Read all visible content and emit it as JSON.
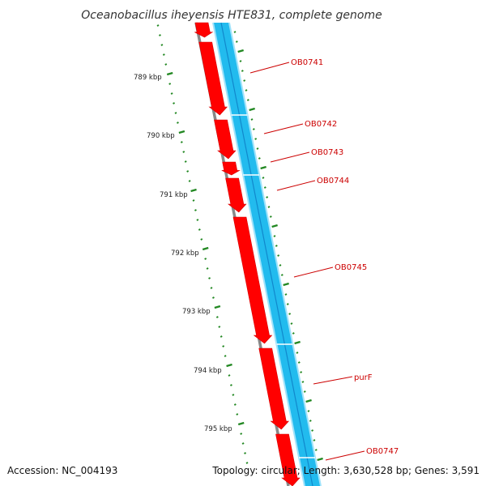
{
  "header": {
    "title": "Oceanobacillus iheyensis HTE831, complete genome"
  },
  "scale_labels": [
    "789 kbp",
    "790 kbp",
    "791 kbp",
    "792 kbp",
    "793 kbp",
    "794 kbp",
    "795 kbp"
  ],
  "genes": [
    "OB0741",
    "OB0742",
    "OB0743",
    "OB0744",
    "OB0745",
    "purF",
    "OB0747"
  ],
  "footer": {
    "accession": "Accession: NC_004193",
    "topology": "Topology: circular; Length: 3,630,528 bp; Genes: 3,591"
  },
  "colors": {
    "forward_cds": "#ff0000",
    "reverse_cds": "#22bbee",
    "backbone": "#888888",
    "ticks": "#228822",
    "label_text": "#cc0000"
  }
}
